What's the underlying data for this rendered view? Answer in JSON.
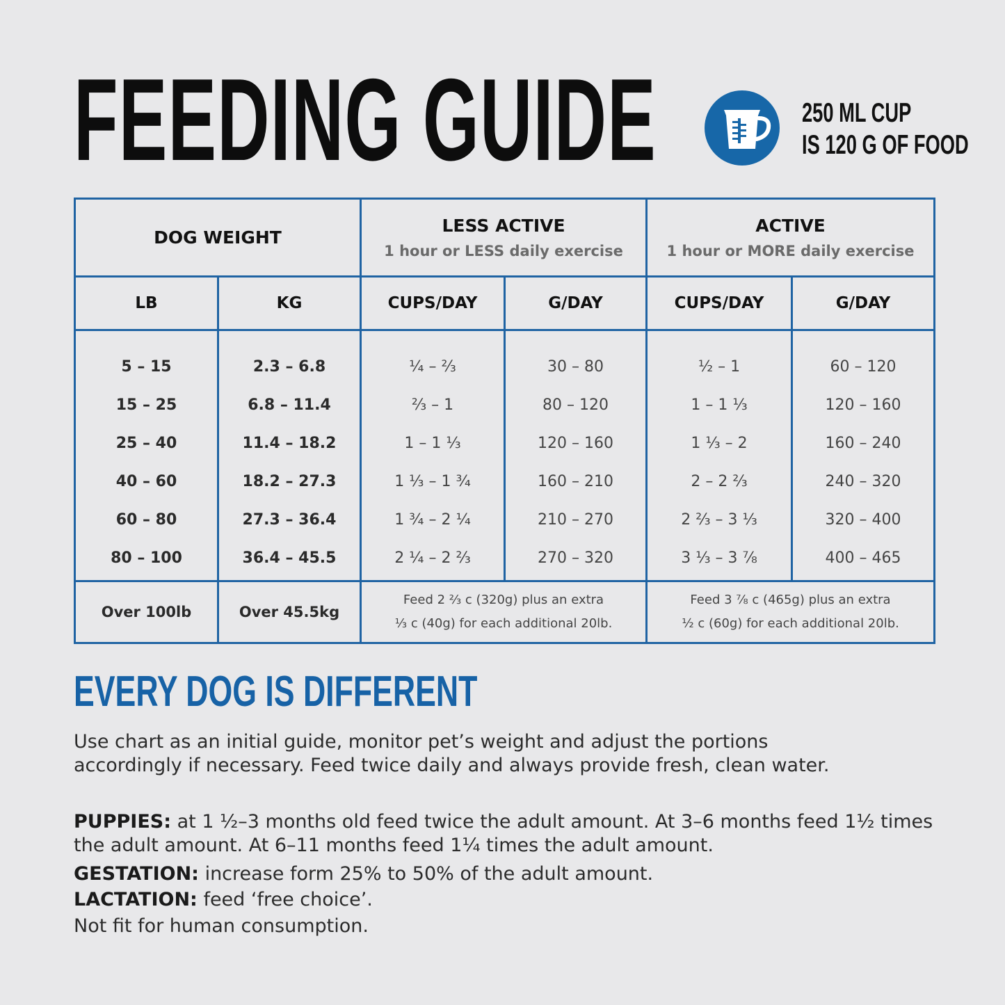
{
  "title": "FEEDING GUIDE",
  "cup_note": {
    "line1": "250 ML CUP",
    "line2": "IS 120 G OF FOOD",
    "icon": "measuring-cup-icon",
    "badge_color": "#1767a8"
  },
  "table": {
    "group_headers": {
      "dog_weight": "DOG WEIGHT",
      "less_active": {
        "title": "LESS ACTIVE",
        "subtitle": "1 hour or LESS daily exercise"
      },
      "active": {
        "title": "ACTIVE",
        "subtitle": "1 hour or MORE daily exercise"
      }
    },
    "columns": [
      "LB",
      "KG",
      "CUPS/DAY",
      "G/DAY",
      "CUPS/DAY",
      "G/DAY"
    ],
    "rows": [
      [
        "5 – 15",
        "2.3 – 6.8",
        "¼ – ⅔",
        "30 – 80",
        "½ – 1",
        "60 – 120"
      ],
      [
        "15 – 25",
        "6.8 – 11.4",
        "⅔ – 1",
        "80 – 120",
        "1 – 1 ⅓",
        "120 – 160"
      ],
      [
        "25 – 40",
        "11.4 – 18.2",
        "1 – 1 ⅓",
        "120 – 160",
        "1 ⅓ – 2",
        "160 – 240"
      ],
      [
        "40 – 60",
        "18.2 – 27.3",
        "1 ⅓ – 1 ¾",
        "160 – 210",
        "2 – 2 ⅔",
        "240 – 320"
      ],
      [
        "60 – 80",
        "27.3 – 36.4",
        "1 ¾ – 2 ¼",
        "210 – 270",
        "2 ⅔ – 3 ⅓",
        "320 – 400"
      ],
      [
        "80 – 100",
        "36.4 – 45.5",
        "2 ¼ – 2 ⅔",
        "270 – 320",
        "3 ⅓ – 3 ⅞",
        "400 – 465"
      ]
    ],
    "over": {
      "lb": "Over 100lb",
      "kg": "Over 45.5kg",
      "less_active_line1": "Feed 2 ⅔ c (320g) plus an extra",
      "less_active_line2": "⅓ c (40g) for each additional 20lb.",
      "active_line1": "Feed 3 ⅞ c (465g) plus an extra",
      "active_line2": "½ c (60g) for each additional 20lb."
    },
    "border_color": "#1f63a3"
  },
  "section_title": "EVERY DOG IS DIFFERENT",
  "intro_line1": "Use chart as an initial guide, monitor pet’s weight and adjust the portions",
  "intro_line2": "accordingly if necessary. Feed twice daily and always provide fresh, clean water.",
  "puppies": {
    "label": "PUPPIES:",
    "line1": " at 1 ½–3 months old feed twice the adult amount. At 3–6 months feed 1½ times",
    "line2": "the adult amount. At 6–11 months feed 1¼ times the adult amount."
  },
  "gestation": {
    "label": "GESTATION:",
    "text": " increase form 25% to 50% of the adult amount."
  },
  "lactation": {
    "label": "LACTATION:",
    "text": " feed ‘free choice’."
  },
  "disclaimer": "Not fit for human consumption."
}
